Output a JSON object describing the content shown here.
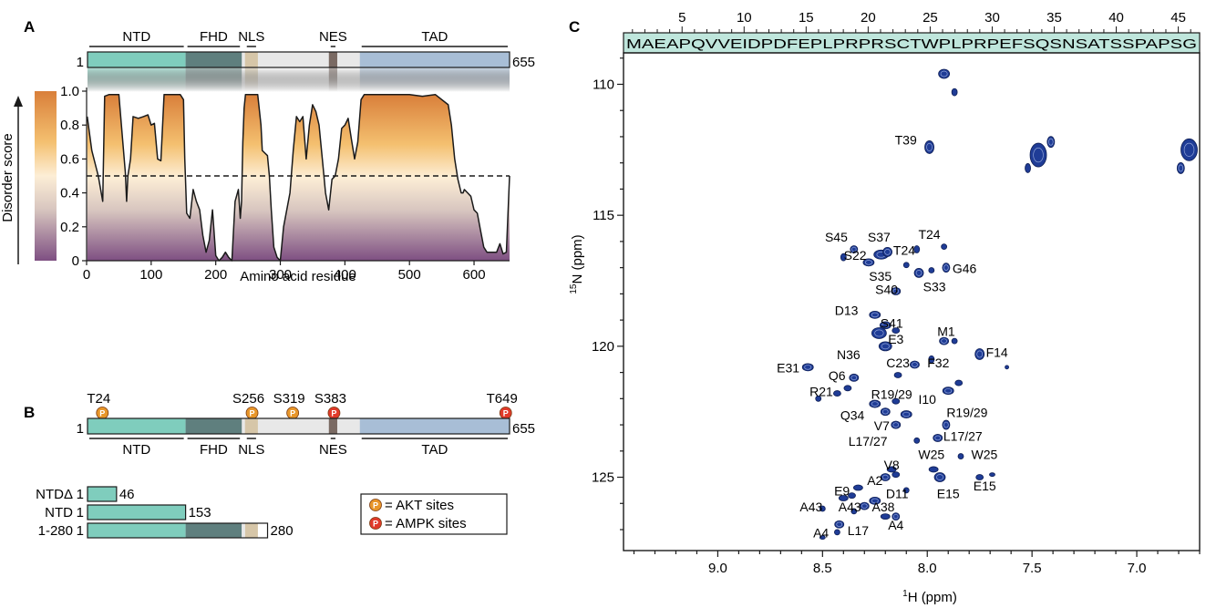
{
  "panel_a": {
    "label": "A",
    "domains": [
      {
        "name": "NTD",
        "start": 1,
        "end": 153,
        "color": "#7fcdbd"
      },
      {
        "name": "FHD",
        "start": 153,
        "end": 240,
        "color": "#5f7f7e"
      },
      {
        "name": "NLS",
        "start": 245,
        "end": 265,
        "color": "#d6c6a8"
      },
      {
        "name": "NES",
        "start": 375,
        "end": 388,
        "color": "#7a6a63"
      },
      {
        "name": "TAD",
        "start": 423,
        "end": 655,
        "color": "#a8bed6"
      }
    ],
    "protein_start": "1",
    "protein_end": "655",
    "protein_length": 655,
    "gradient_colors": [
      "#d97f3a",
      "#f4c070",
      "#fdeed6",
      "#d7c5bf",
      "#7e4f82"
    ],
    "chart_data": {
      "type": "area",
      "title": "",
      "xlabel": "Amino acid residue",
      "ylabel": "Disorder score",
      "xlim": [
        0,
        655
      ],
      "ylim": [
        0,
        1
      ],
      "x_ticks": [
        "0",
        "100",
        "200",
        "300",
        "400",
        "500",
        "600"
      ],
      "y_ticks": [
        "0",
        "0.2",
        "0.4",
        "0.6",
        "0.8",
        "1.0"
      ],
      "threshold": 0.5,
      "series": [
        {
          "x": [
            1,
            8,
            18,
            25,
            28,
            35,
            50,
            60,
            62,
            64,
            68,
            72,
            80,
            88,
            95,
            100,
            105,
            110,
            115,
            120,
            130,
            140,
            145,
            150,
            152,
            155,
            160,
            165,
            170,
            175,
            180,
            185,
            190,
            195,
            200,
            205,
            210,
            215,
            220,
            225,
            230,
            235,
            238,
            240,
            242,
            244,
            246,
            250,
            265,
            270,
            272,
            280,
            283,
            286,
            290,
            295,
            300,
            305,
            310,
            315,
            320,
            325,
            330,
            335,
            340,
            345,
            350,
            355,
            360,
            365,
            370,
            375,
            380,
            385,
            390,
            395,
            400,
            405,
            410,
            415,
            420,
            425,
            430,
            440,
            450,
            470,
            500,
            520,
            540,
            560,
            565,
            570,
            575,
            580,
            583,
            585,
            590,
            595,
            600,
            605,
            610,
            615,
            620,
            625,
            630,
            635,
            640,
            645,
            650,
            655
          ],
          "y": [
            0.85,
            0.65,
            0.5,
            0.35,
            0.97,
            0.98,
            0.98,
            0.52,
            0.35,
            0.5,
            0.6,
            0.85,
            0.84,
            0.85,
            0.86,
            0.8,
            0.81,
            0.6,
            0.59,
            0.98,
            0.98,
            0.98,
            0.98,
            0.95,
            0.6,
            0.28,
            0.25,
            0.42,
            0.35,
            0.3,
            0.15,
            0.05,
            0.12,
            0.3,
            0.03,
            0.0,
            0.02,
            0.05,
            0.02,
            0.0,
            0.35,
            0.42,
            0.25,
            0.35,
            0.7,
            0.9,
            0.98,
            0.98,
            0.98,
            0.8,
            0.65,
            0.62,
            0.5,
            0.3,
            0.08,
            0.02,
            0.0,
            0.2,
            0.3,
            0.4,
            0.65,
            0.85,
            0.82,
            0.85,
            0.6,
            0.8,
            0.92,
            0.88,
            0.8,
            0.6,
            0.4,
            0.3,
            0.48,
            0.5,
            0.6,
            0.78,
            0.8,
            0.84,
            0.72,
            0.6,
            0.7,
            0.95,
            0.98,
            0.98,
            0.98,
            0.98,
            0.98,
            0.97,
            0.98,
            0.92,
            0.8,
            0.6,
            0.48,
            0.4,
            0.4,
            0.42,
            0.4,
            0.38,
            0.3,
            0.28,
            0.18,
            0.08,
            0.05,
            0.05,
            0.05,
            0.05,
            0.1,
            0.04,
            0.05,
            0.5
          ]
        }
      ]
    }
  },
  "panel_b": {
    "label": "B",
    "sites": [
      {
        "label": "T24",
        "residue": 24,
        "type": "akt"
      },
      {
        "label": "S256",
        "residue": 256,
        "type": "akt"
      },
      {
        "label": "S319",
        "residue": 319,
        "type": "akt"
      },
      {
        "label": "S383",
        "residue": 383,
        "type": "ampk"
      },
      {
        "label": "T649",
        "residue": 649,
        "type": "ampk"
      }
    ],
    "p_letter": "P",
    "protein_start": "1",
    "protein_end": "655",
    "constructs": [
      {
        "name": "NTDΔ",
        "start_label": "1",
        "end": 46,
        "end_label": "46"
      },
      {
        "name": "NTD",
        "start_label": "1",
        "end": 153,
        "end_label": "153"
      },
      {
        "name": "1-280",
        "start_label": "1",
        "end": 280,
        "end_label": "280"
      }
    ],
    "legend": [
      {
        "text": "= AKT sites",
        "color": "#e8962a"
      },
      {
        "text": "= AMPK sites",
        "color": "#e03a2a"
      }
    ]
  },
  "panel_c": {
    "label": "C",
    "sequence": "MAEAPQVVEIDPDFEPLPRPRSCTWPLPRPEFSQSNSATSSPAPSG",
    "seq_ticks": [
      "5",
      "10",
      "15",
      "20",
      "25",
      "30",
      "35",
      "40",
      "45"
    ],
    "peak_color": "#1f3c96",
    "chart_data": {
      "type": "scatter",
      "title": "",
      "xlabel_super": "1",
      "xlabel": "H (ppm)",
      "ylabel_super": "15",
      "ylabel": "N (ppm)",
      "xlim": [
        9.45,
        6.7
      ],
      "ylim": [
        108.8,
        127.8
      ],
      "x_ticks": [
        "9.0",
        "8.5",
        "8.0",
        "7.5",
        "7.0"
      ],
      "y_ticks": [
        "110",
        "115",
        "120",
        "125"
      ],
      "peaks": [
        {
          "x": 7.92,
          "y": 109.6,
          "rx": 6,
          "ry": 5
        },
        {
          "x": 7.87,
          "y": 110.3,
          "rx": 3,
          "ry": 4
        },
        {
          "x": 7.99,
          "y": 112.4,
          "rx": 5,
          "ry": 7
        },
        {
          "x": 7.47,
          "y": 112.7,
          "rx": 9,
          "ry": 13
        },
        {
          "x": 7.41,
          "y": 112.2,
          "rx": 4,
          "ry": 6
        },
        {
          "x": 7.52,
          "y": 113.2,
          "rx": 3,
          "ry": 5
        },
        {
          "x": 6.75,
          "y": 112.5,
          "rx": 9,
          "ry": 12
        },
        {
          "x": 6.79,
          "y": 113.2,
          "rx": 4,
          "ry": 6
        },
        {
          "x": 8.22,
          "y": 116.5,
          "rx": 8,
          "ry": 5
        },
        {
          "x": 8.28,
          "y": 116.8,
          "rx": 6,
          "ry": 4
        },
        {
          "x": 8.35,
          "y": 116.3,
          "rx": 4,
          "ry": 4
        },
        {
          "x": 8.4,
          "y": 116.6,
          "rx": 3,
          "ry": 4
        },
        {
          "x": 8.19,
          "y": 116.4,
          "rx": 5,
          "ry": 5
        },
        {
          "x": 8.05,
          "y": 116.3,
          "rx": 3,
          "ry": 4
        },
        {
          "x": 7.92,
          "y": 116.2,
          "rx": 3,
          "ry": 3
        },
        {
          "x": 8.1,
          "y": 116.9,
          "rx": 3,
          "ry": 3
        },
        {
          "x": 8.04,
          "y": 117.2,
          "rx": 5,
          "ry": 5
        },
        {
          "x": 7.98,
          "y": 117.1,
          "rx": 3,
          "ry": 3
        },
        {
          "x": 7.91,
          "y": 117.0,
          "rx": 4,
          "ry": 5
        },
        {
          "x": 8.15,
          "y": 117.9,
          "rx": 5,
          "ry": 4
        },
        {
          "x": 8.25,
          "y": 118.8,
          "rx": 6,
          "ry": 4
        },
        {
          "x": 8.2,
          "y": 119.2,
          "rx": 6,
          "ry": 4
        },
        {
          "x": 8.23,
          "y": 119.5,
          "rx": 8,
          "ry": 6
        },
        {
          "x": 8.2,
          "y": 120.0,
          "rx": 7,
          "ry": 5
        },
        {
          "x": 8.15,
          "y": 119.4,
          "rx": 4,
          "ry": 3
        },
        {
          "x": 7.92,
          "y": 119.8,
          "rx": 5,
          "ry": 4
        },
        {
          "x": 7.87,
          "y": 119.8,
          "rx": 3,
          "ry": 3
        },
        {
          "x": 7.75,
          "y": 120.3,
          "rx": 5,
          "ry": 6
        },
        {
          "x": 8.06,
          "y": 120.7,
          "rx": 5,
          "ry": 4
        },
        {
          "x": 7.98,
          "y": 120.5,
          "rx": 3,
          "ry": 4
        },
        {
          "x": 8.14,
          "y": 121.1,
          "rx": 4,
          "ry": 3
        },
        {
          "x": 8.57,
          "y": 120.8,
          "rx": 6,
          "ry": 4
        },
        {
          "x": 8.35,
          "y": 121.2,
          "rx": 5,
          "ry": 4
        },
        {
          "x": 8.38,
          "y": 121.6,
          "rx": 4,
          "ry": 3
        },
        {
          "x": 8.43,
          "y": 121.8,
          "rx": 4,
          "ry": 3
        },
        {
          "x": 8.52,
          "y": 122.0,
          "rx": 3,
          "ry": 3
        },
        {
          "x": 7.62,
          "y": 120.8,
          "rx": 2,
          "ry": 2
        },
        {
          "x": 8.25,
          "y": 122.2,
          "rx": 6,
          "ry": 4
        },
        {
          "x": 8.2,
          "y": 122.5,
          "rx": 5,
          "ry": 4
        },
        {
          "x": 8.1,
          "y": 122.6,
          "rx": 6,
          "ry": 4
        },
        {
          "x": 8.15,
          "y": 122.1,
          "rx": 4,
          "ry": 3
        },
        {
          "x": 7.9,
          "y": 121.7,
          "rx": 6,
          "ry": 4
        },
        {
          "x": 7.85,
          "y": 121.4,
          "rx": 4,
          "ry": 3
        },
        {
          "x": 8.15,
          "y": 123.0,
          "rx": 5,
          "ry": 4
        },
        {
          "x": 7.91,
          "y": 123.0,
          "rx": 4,
          "ry": 5
        },
        {
          "x": 7.95,
          "y": 123.5,
          "rx": 5,
          "ry": 4
        },
        {
          "x": 8.05,
          "y": 123.6,
          "rx": 3,
          "ry": 3
        },
        {
          "x": 8.17,
          "y": 124.7,
          "rx": 5,
          "ry": 3
        },
        {
          "x": 7.97,
          "y": 124.7,
          "rx": 5,
          "ry": 3
        },
        {
          "x": 7.94,
          "y": 125.0,
          "rx": 6,
          "ry": 5
        },
        {
          "x": 7.84,
          "y": 124.2,
          "rx": 3,
          "ry": 3
        },
        {
          "x": 7.75,
          "y": 125.0,
          "rx": 4,
          "ry": 3
        },
        {
          "x": 7.69,
          "y": 124.9,
          "rx": 3,
          "ry": 2
        },
        {
          "x": 8.33,
          "y": 125.4,
          "rx": 5,
          "ry": 3
        },
        {
          "x": 8.2,
          "y": 125.0,
          "rx": 5,
          "ry": 4
        },
        {
          "x": 8.15,
          "y": 124.9,
          "rx": 4,
          "ry": 3
        },
        {
          "x": 8.4,
          "y": 125.8,
          "rx": 5,
          "ry": 3
        },
        {
          "x": 8.36,
          "y": 125.7,
          "rx": 4,
          "ry": 3
        },
        {
          "x": 8.25,
          "y": 125.9,
          "rx": 6,
          "ry": 4
        },
        {
          "x": 8.3,
          "y": 126.1,
          "rx": 5,
          "ry": 4
        },
        {
          "x": 8.35,
          "y": 126.3,
          "rx": 3,
          "ry": 3
        },
        {
          "x": 8.1,
          "y": 125.5,
          "rx": 3,
          "ry": 3
        },
        {
          "x": 8.5,
          "y": 126.2,
          "rx": 3,
          "ry": 3
        },
        {
          "x": 8.2,
          "y": 126.5,
          "rx": 5,
          "ry": 3
        },
        {
          "x": 8.15,
          "y": 126.5,
          "rx": 4,
          "ry": 4
        },
        {
          "x": 8.42,
          "y": 126.8,
          "rx": 5,
          "ry": 4
        },
        {
          "x": 8.43,
          "y": 127.1,
          "rx": 3,
          "ry": 3
        },
        {
          "x": 8.5,
          "y": 127.3,
          "rx": 3,
          "ry": 2
        }
      ],
      "annotations": [
        {
          "text": "T39",
          "x": 8.05,
          "y": 112.3,
          "anchor": "end"
        },
        {
          "text": "S45",
          "x": 8.38,
          "y": 116.0,
          "anchor": "end"
        },
        {
          "text": "S37",
          "x": 8.23,
          "y": 116.0,
          "anchor": "middle"
        },
        {
          "text": "T24",
          "x": 7.99,
          "y": 115.9,
          "anchor": "middle"
        },
        {
          "text": "T24",
          "x": 8.11,
          "y": 116.5,
          "anchor": "middle"
        },
        {
          "text": "S22",
          "x": 8.29,
          "y": 116.7,
          "anchor": "end"
        },
        {
          "text": "G46",
          "x": 7.88,
          "y": 117.2,
          "anchor": "start"
        },
        {
          "text": "S35",
          "x": 8.17,
          "y": 117.5,
          "anchor": "end"
        },
        {
          "text": "S33",
          "x": 8.02,
          "y": 117.9,
          "anchor": "start"
        },
        {
          "text": "S40",
          "x": 8.14,
          "y": 118.0,
          "anchor": "end"
        },
        {
          "text": "D13",
          "x": 8.33,
          "y": 118.8,
          "anchor": "end"
        },
        {
          "text": "S41",
          "x": 8.17,
          "y": 119.3,
          "anchor": "middle"
        },
        {
          "text": "M1",
          "x": 7.91,
          "y": 119.6,
          "anchor": "middle"
        },
        {
          "text": "E3",
          "x": 8.15,
          "y": 119.9,
          "anchor": "middle"
        },
        {
          "text": "F14",
          "x": 7.72,
          "y": 120.4,
          "anchor": "start"
        },
        {
          "text": "N36",
          "x": 8.32,
          "y": 120.5,
          "anchor": "end"
        },
        {
          "text": "C23",
          "x": 8.14,
          "y": 120.8,
          "anchor": "middle"
        },
        {
          "text": "F32",
          "x": 8.0,
          "y": 120.8,
          "anchor": "start"
        },
        {
          "text": "E31",
          "x": 8.61,
          "y": 121.0,
          "anchor": "end"
        },
        {
          "text": "Q6",
          "x": 8.39,
          "y": 121.3,
          "anchor": "end"
        },
        {
          "text": "R21",
          "x": 8.45,
          "y": 121.9,
          "anchor": "end"
        },
        {
          "text": "R19/29",
          "x": 8.17,
          "y": 122.0,
          "anchor": "middle"
        },
        {
          "text": "I10",
          "x": 8.0,
          "y": 122.2,
          "anchor": "middle"
        },
        {
          "text": "R19/29",
          "x": 7.81,
          "y": 122.7,
          "anchor": "middle"
        },
        {
          "text": "Q34",
          "x": 8.3,
          "y": 122.8,
          "anchor": "end"
        },
        {
          "text": "V7",
          "x": 8.18,
          "y": 123.2,
          "anchor": "end"
        },
        {
          "text": "L17/27",
          "x": 8.19,
          "y": 123.8,
          "anchor": "end"
        },
        {
          "text": "L17/27",
          "x": 7.83,
          "y": 123.6,
          "anchor": "middle"
        },
        {
          "text": "W25",
          "x": 7.98,
          "y": 124.3,
          "anchor": "middle"
        },
        {
          "text": "W25",
          "x": 7.79,
          "y": 124.3,
          "anchor": "start"
        },
        {
          "text": "V8",
          "x": 8.17,
          "y": 124.7,
          "anchor": "middle"
        },
        {
          "text": "A2",
          "x": 8.25,
          "y": 125.3,
          "anchor": "middle"
        },
        {
          "text": "E9",
          "x": 8.37,
          "y": 125.7,
          "anchor": "end"
        },
        {
          "text": "D11",
          "x": 8.09,
          "y": 125.8,
          "anchor": "end"
        },
        {
          "text": "E15",
          "x": 7.9,
          "y": 125.8,
          "anchor": "middle"
        },
        {
          "text": "E15",
          "x": 7.78,
          "y": 125.5,
          "anchor": "start"
        },
        {
          "text": "A38",
          "x": 8.21,
          "y": 126.3,
          "anchor": "middle"
        },
        {
          "text": "A43",
          "x": 8.5,
          "y": 126.3,
          "anchor": "end"
        },
        {
          "text": "A43",
          "x": 8.37,
          "y": 126.3,
          "anchor": "middle"
        },
        {
          "text": "A4",
          "x": 8.15,
          "y": 127.0,
          "anchor": "middle"
        },
        {
          "text": "L17",
          "x": 8.33,
          "y": 127.2,
          "anchor": "middle"
        },
        {
          "text": "A4",
          "x": 8.47,
          "y": 127.3,
          "anchor": "end"
        }
      ]
    }
  }
}
